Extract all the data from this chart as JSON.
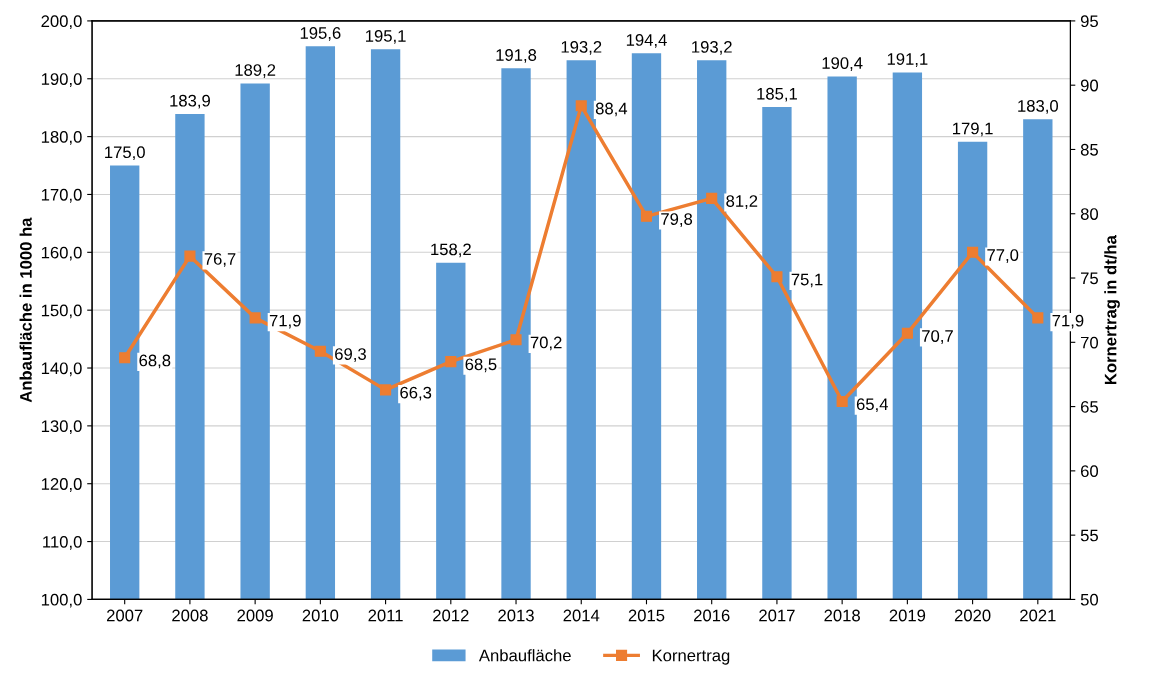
{
  "chart_data": {
    "type": "bar",
    "categories": [
      "2007",
      "2008",
      "2009",
      "2010",
      "2011",
      "2012",
      "2013",
      "2014",
      "2015",
      "2016",
      "2017",
      "2018",
      "2019",
      "2020",
      "2021"
    ],
    "ylabel": "Anbaufläche in 1000 ha",
    "y2label": "Kornertrag in dt/ha",
    "ylim": [
      100,
      200
    ],
    "yticks": [
      {
        "value": 100,
        "label": "100,0"
      },
      {
        "value": 110,
        "label": "110,0"
      },
      {
        "value": 120,
        "label": "120,0"
      },
      {
        "value": 130,
        "label": "130,0"
      },
      {
        "value": 140,
        "label": "140,0"
      },
      {
        "value": 150,
        "label": "150,0"
      },
      {
        "value": 160,
        "label": "160,0"
      },
      {
        "value": 170,
        "label": "170,0"
      },
      {
        "value": 180,
        "label": "180,0"
      },
      {
        "value": 190,
        "label": "190,0"
      },
      {
        "value": 200,
        "label": "200,0"
      }
    ],
    "y2lim": [
      50,
      95
    ],
    "y2ticks": [
      50,
      55,
      60,
      65,
      70,
      75,
      80,
      85,
      90,
      95
    ],
    "grid": "y",
    "legend": "bottom",
    "series": [
      {
        "name": "Anbaufläche",
        "color": "#5b9bd5",
        "values": [
          175.0,
          183.9,
          189.2,
          195.6,
          195.1,
          158.2,
          191.8,
          193.2,
          194.4,
          193.2,
          185.1,
          190.4,
          191.1,
          179.1,
          183.0
        ],
        "value_labels": [
          "175,0",
          "183,9",
          "189,2",
          "195,6",
          "195,1",
          "158,2",
          "191,8",
          "193,2",
          "194,4",
          "193,2",
          "185,1",
          "190,4",
          "191,1",
          "179,1",
          "183,0"
        ]
      },
      {
        "name": "Kornertrag",
        "type": "line",
        "axis": "y2",
        "color": "#ed7d31",
        "marker": "square",
        "line_style": "solid",
        "values": [
          68.8,
          76.7,
          71.9,
          69.3,
          66.3,
          68.5,
          70.2,
          88.4,
          79.8,
          81.2,
          75.1,
          65.4,
          70.7,
          77.0,
          71.9
        ],
        "value_labels": [
          "68,8",
          "76,7",
          "71,9",
          "69,3",
          "66,3",
          "68,5",
          "70,2",
          "88,4",
          "79,8",
          "81,2",
          "75,1",
          "65,4",
          "70,7",
          "77,0",
          "71,9"
        ]
      }
    ]
  }
}
